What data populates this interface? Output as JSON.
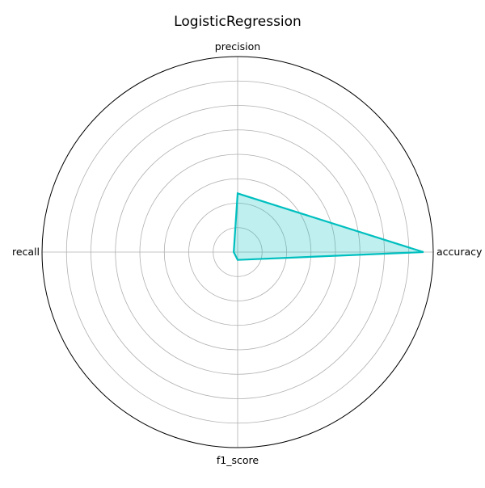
{
  "chart_data": {
    "type": "radar",
    "title": "LogisticRegression",
    "axes": [
      "accuracy",
      "precision",
      "recall",
      "f1_score"
    ],
    "values": [
      0.95,
      0.3,
      0.02,
      0.04
    ],
    "r_range": [
      0,
      1
    ],
    "ring_count": 7,
    "radial_tick_labels_visible": false,
    "grid": true,
    "series": [
      {
        "name": "LogisticRegression",
        "values": [
          0.95,
          0.3,
          0.02,
          0.04
        ],
        "line_color": "#00bfbf",
        "fill_color": "#00bfbf",
        "fill_opacity": 0.25
      }
    ]
  }
}
